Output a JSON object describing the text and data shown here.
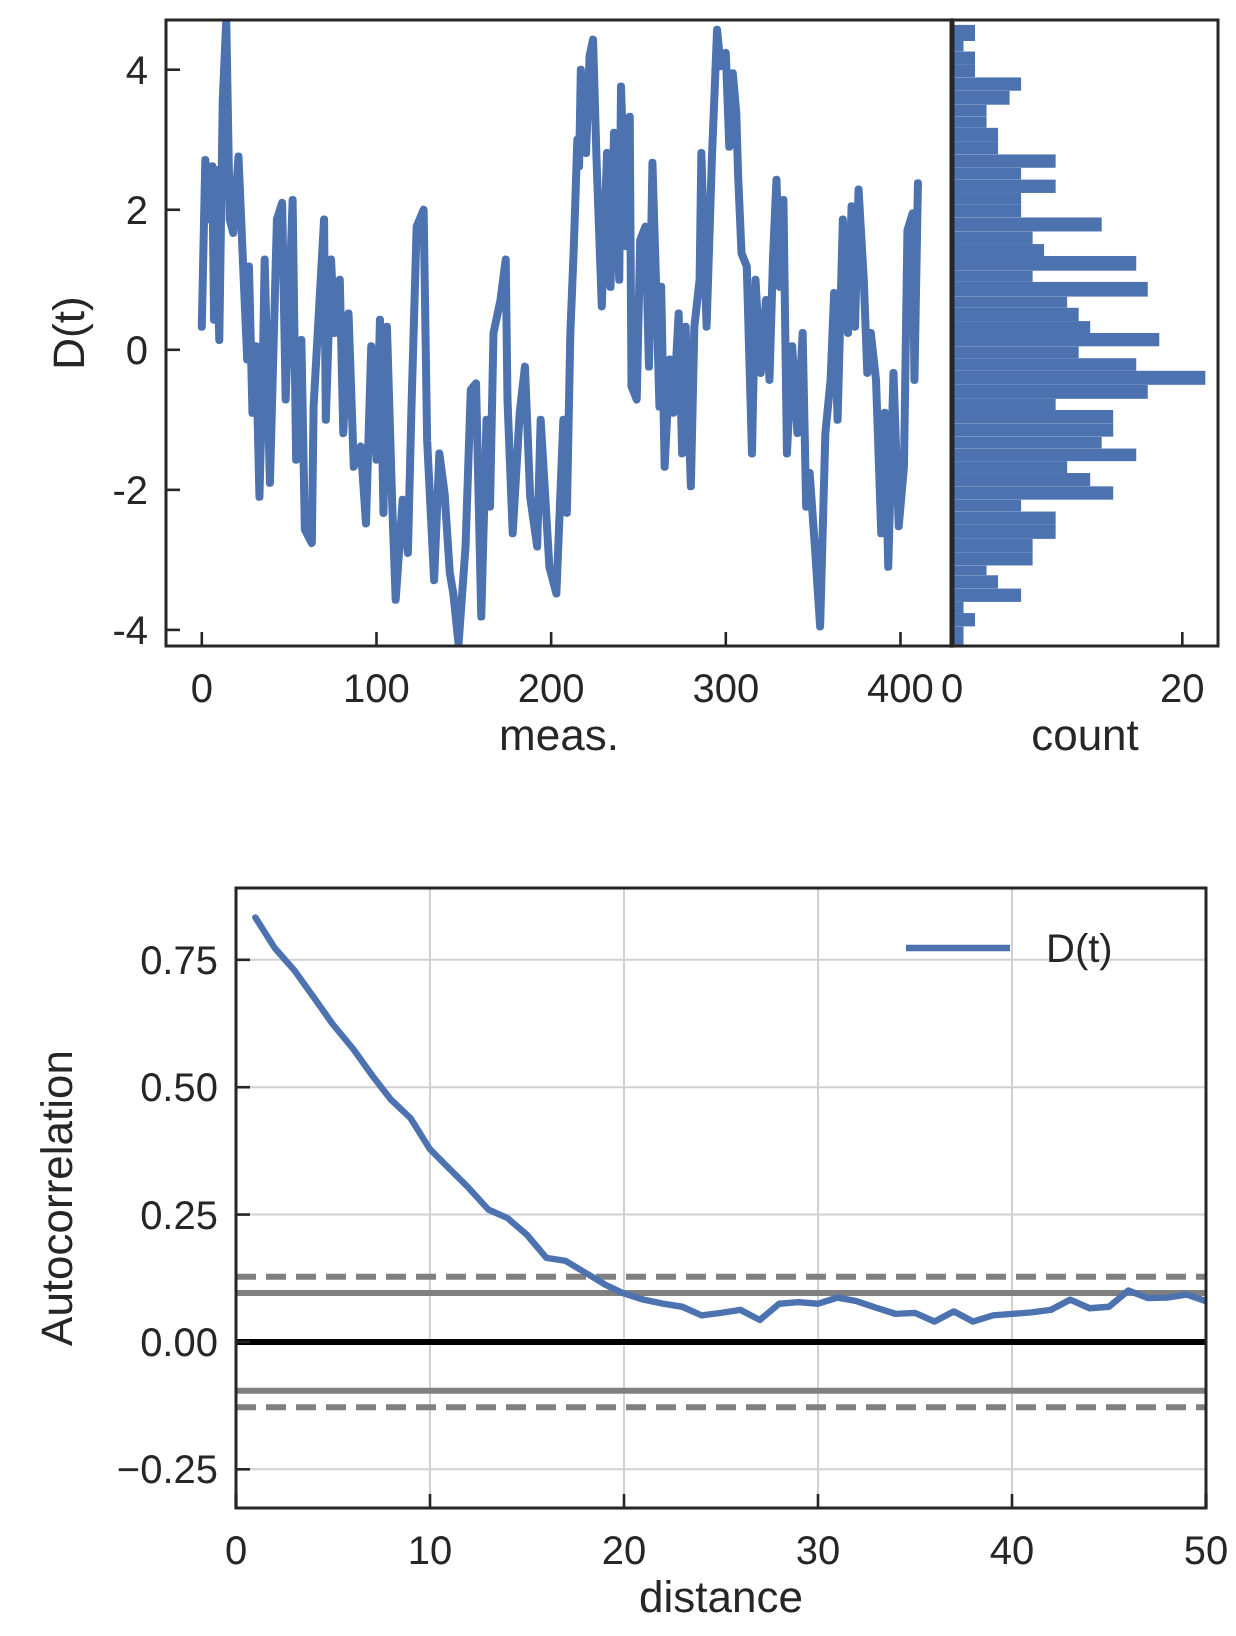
{
  "chart_data": [
    {
      "type": "line",
      "xlabel": "meas.",
      "ylabel": "D(t)",
      "xlim": [
        -20.5,
        429.5
      ],
      "ylim": [
        -4.23,
        4.71
      ],
      "xticks": [
        0,
        100,
        200,
        300,
        400
      ],
      "yticks": [
        -4,
        -2,
        0,
        2,
        4
      ],
      "x": [
        0,
        2,
        5,
        6,
        7,
        8,
        10,
        12,
        14,
        16,
        18,
        21,
        24,
        26,
        27,
        29,
        31,
        33,
        35,
        36,
        39,
        43,
        46,
        48,
        52,
        54,
        57,
        59,
        63,
        64,
        70,
        71,
        74,
        76,
        79,
        81,
        84,
        87,
        91,
        94,
        97,
        100,
        102,
        104,
        106,
        109,
        111,
        115,
        118,
        120,
        123,
        127,
        129,
        133,
        136,
        139,
        142,
        144,
        147,
        151,
        154,
        157,
        160,
        163,
        165,
        167,
        171,
        174,
        175,
        178,
        182,
        185,
        188,
        192,
        194,
        199,
        203,
        207,
        209,
        211,
        213,
        215,
        216,
        217,
        220,
        222,
        224,
        226,
        229,
        232,
        234,
        236,
        239,
        240,
        243,
        245,
        246,
        249,
        251,
        254,
        256,
        258,
        260,
        262,
        263,
        265,
        268,
        270,
        273,
        275,
        277,
        280,
        282,
        285,
        286,
        289,
        292,
        295,
        297,
        300,
        302,
        304,
        306,
        307,
        309,
        312,
        315,
        317,
        320,
        323,
        325,
        327,
        329,
        331,
        333,
        335,
        338,
        341,
        344,
        346,
        348,
        351,
        354,
        357,
        360,
        362,
        364,
        367,
        370,
        372,
        374,
        376,
        379,
        381,
        383,
        386,
        389,
        391,
        393,
        396,
        399,
        402,
        404,
        407,
        408,
        410
      ],
      "series": [
        {
          "color": "#4c72b0",
          "values": [
            0.33,
            2.71,
            1.86,
            2.62,
            0.43,
            2.57,
            0.14,
            3.57,
            4.7,
            1.86,
            1.67,
            2.76,
            1.0,
            -0.14,
            1.19,
            -0.9,
            0.05,
            -2.1,
            -0.14,
            1.29,
            -1.9,
            1.86,
            2.1,
            -0.71,
            2.14,
            -1.57,
            0.14,
            -2.57,
            -2.76,
            -0.81,
            1.86,
            -1.0,
            1.29,
            0.24,
            1.0,
            -1.19,
            0.52,
            -1.67,
            -1.38,
            -2.48,
            0.05,
            -1.57,
            0.43,
            -2.33,
            0.33,
            -2.19,
            -3.57,
            -2.14,
            -2.9,
            -0.86,
            1.76,
            2.0,
            -1.29,
            -3.29,
            -1.48,
            -2.05,
            -3.19,
            -3.48,
            -4.2,
            -2.81,
            -0.57,
            -0.48,
            -3.81,
            -1.0,
            -2.24,
            0.24,
            0.71,
            1.29,
            -0.71,
            -2.62,
            -0.9,
            -0.24,
            -2.1,
            -2.81,
            -1.0,
            -3.1,
            -3.48,
            -1.0,
            -2.33,
            0.24,
            1.48,
            3.0,
            2.62,
            4.0,
            2.81,
            4.19,
            4.43,
            2.71,
            0.62,
            2.81,
            0.9,
            3.1,
            1.0,
            3.76,
            1.48,
            3.33,
            -0.52,
            -0.71,
            1.57,
            1.76,
            -0.24,
            2.67,
            1.0,
            -0.81,
            0.9,
            -1.67,
            -0.14,
            -0.9,
            0.52,
            -1.48,
            0.33,
            -1.95,
            0.33,
            1.0,
            2.81,
            0.33,
            2.71,
            4.57,
            4.05,
            4.24,
            2.9,
            3.95,
            3.38,
            2.52,
            1.38,
            1.19,
            -1.48,
            1.0,
            -0.33,
            0.71,
            -0.43,
            1.29,
            2.43,
            0.9,
            2.14,
            -1.48,
            0.05,
            -1.19,
            0.24,
            -2.24,
            -1.76,
            -2.81,
            -3.95,
            -1.19,
            -0.43,
            0.81,
            -1.0,
            1.86,
            0.24,
            2.05,
            0.33,
            2.29,
            1.0,
            -0.33,
            0.24,
            -0.43,
            -2.62,
            -0.9,
            -3.1,
            -0.33,
            -2.52,
            -1.67,
            1.71,
            1.95,
            -0.43,
            2.38
          ]
        }
      ]
    },
    {
      "type": "histogram",
      "orientation": "horizontal",
      "xlabel": "count",
      "xlim": [
        0,
        23.1
      ],
      "xticks": [
        0,
        20
      ],
      "ylim": [
        -4.23,
        4.71
      ],
      "tick_labels": "x",
      "color": "#4c72b0",
      "bins": [
        -4.22,
        -3.95,
        -3.76,
        -3.6,
        -3.41,
        -3.22,
        -3.08,
        -2.89,
        -2.7,
        -2.5,
        -2.31,
        -2.14,
        -1.95,
        -1.76,
        -1.59,
        -1.41,
        -1.24,
        -1.05,
        -0.86,
        -0.7,
        -0.5,
        -0.3,
        -0.12,
        0.05,
        0.24,
        0.41,
        0.6,
        0.76,
        0.97,
        1.13,
        1.34,
        1.51,
        1.69,
        1.89,
        2.07,
        2.24,
        2.43,
        2.6,
        2.79,
        2.98,
        3.17,
        3.33,
        3.5,
        3.7,
        3.89,
        4.08,
        4.26,
        4.41,
        4.64
      ],
      "values": [
        1,
        2,
        1,
        6,
        4,
        3,
        7,
        7,
        9,
        9,
        6,
        14,
        12,
        10,
        16,
        13,
        14,
        14,
        9,
        17,
        22,
        16,
        11,
        18,
        12,
        11,
        10,
        17,
        7,
        16,
        8,
        7,
        13,
        6,
        6,
        9,
        6,
        9,
        4,
        4,
        3,
        3,
        5,
        6,
        2,
        2,
        1,
        2
      ]
    },
    {
      "type": "line",
      "xlabel": "distance",
      "ylabel": "Autocorrelation",
      "xlim": [
        0,
        50
      ],
      "ylim": [
        -0.326,
        0.891
      ],
      "xticks": [
        0,
        10,
        20,
        30,
        40,
        50
      ],
      "yticks": [
        {
          "value": -0.25,
          "label": "−0.25"
        },
        {
          "value": 0,
          "label": "0.00"
        },
        {
          "value": 0.25,
          "label": "0.25"
        },
        {
          "value": 0.5,
          "label": "0.50"
        },
        {
          "value": 0.75,
          "label": "0.75"
        }
      ],
      "grid": true,
      "legend": "top right",
      "x": [
        1,
        2,
        3,
        4,
        5,
        6,
        7,
        8,
        9,
        10,
        11,
        12,
        13,
        14,
        15,
        16,
        17,
        18,
        19,
        20,
        21,
        22,
        23,
        24,
        25,
        26,
        27,
        28,
        29,
        30,
        31,
        32,
        33,
        34,
        35,
        36,
        37,
        38,
        39,
        40,
        41,
        42,
        43,
        44,
        45,
        46,
        47,
        48,
        49,
        50
      ],
      "series": [
        {
          "name": "D(t)",
          "color": "#4c72b0",
          "values": [
            0.833,
            0.773,
            0.73,
            0.677,
            0.623,
            0.577,
            0.524,
            0.475,
            0.439,
            0.378,
            0.34,
            0.302,
            0.26,
            0.243,
            0.21,
            0.165,
            0.159,
            0.136,
            0.113,
            0.095,
            0.083,
            0.075,
            0.069,
            0.052,
            0.057,
            0.063,
            0.043,
            0.075,
            0.078,
            0.075,
            0.087,
            0.08,
            0.067,
            0.055,
            0.057,
            0.04,
            0.06,
            0.04,
            0.052,
            0.055,
            0.058,
            0.063,
            0.083,
            0.066,
            0.069,
            0.101,
            0.086,
            0.087,
            0.093,
            0.08
          ]
        }
      ],
      "ref_lines": [
        {
          "axis": "y",
          "value": 0,
          "color": "#000000",
          "line_style": "solid"
        },
        {
          "axis": "y",
          "value": 0.096,
          "color": "#808080",
          "line_style": "solid"
        },
        {
          "axis": "y",
          "value": -0.096,
          "color": "#808080",
          "line_style": "solid"
        },
        {
          "axis": "y",
          "value": 0.128,
          "color": "#808080",
          "line_style": "dashed"
        },
        {
          "axis": "y",
          "value": -0.128,
          "color": "#808080",
          "line_style": "dashed"
        }
      ]
    }
  ]
}
